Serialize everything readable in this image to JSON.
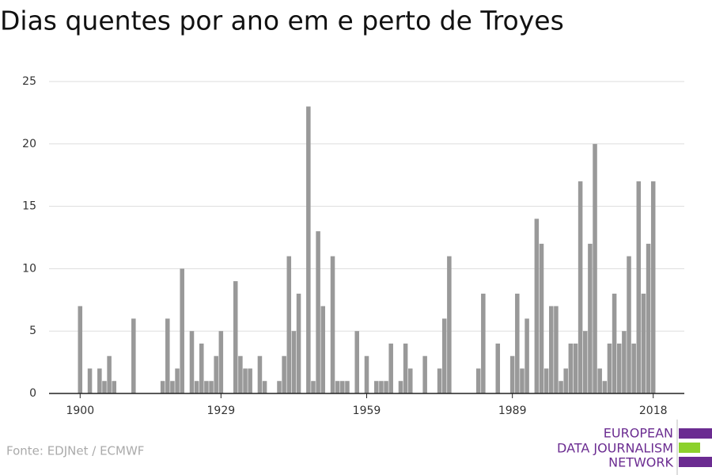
{
  "chart_data": {
    "type": "bar",
    "title": "Dias quentes por ano em e perto de Troyes",
    "source": "Fonte: EDJNet / ECMWF",
    "logo": [
      "EUROPEAN",
      "DATA JOURNALISM",
      "NETWORK"
    ],
    "color": "#999999",
    "x": [
      1900,
      1901,
      1902,
      1903,
      1904,
      1905,
      1906,
      1907,
      1908,
      1909,
      1910,
      1911,
      1912,
      1913,
      1914,
      1915,
      1916,
      1917,
      1918,
      1919,
      1920,
      1921,
      1922,
      1923,
      1924,
      1925,
      1926,
      1927,
      1928,
      1929,
      1930,
      1931,
      1932,
      1933,
      1934,
      1935,
      1936,
      1937,
      1938,
      1939,
      1940,
      1941,
      1942,
      1943,
      1944,
      1945,
      1946,
      1947,
      1948,
      1949,
      1950,
      1951,
      1952,
      1953,
      1954,
      1955,
      1956,
      1957,
      1958,
      1959,
      1960,
      1961,
      1962,
      1963,
      1964,
      1965,
      1966,
      1967,
      1968,
      1969,
      1970,
      1971,
      1972,
      1973,
      1974,
      1975,
      1976,
      1977,
      1978,
      1979,
      1980,
      1981,
      1982,
      1983,
      1984,
      1985,
      1986,
      1987,
      1988,
      1989,
      1990,
      1991,
      1992,
      1993,
      1994,
      1995,
      1996,
      1997,
      1998,
      1999,
      2000,
      2001,
      2002,
      2003,
      2004,
      2005,
      2006,
      2007,
      2008,
      2009,
      2010,
      2011,
      2012,
      2013,
      2014,
      2015,
      2016,
      2017,
      2018
    ],
    "values": [
      7,
      0,
      2,
      0,
      2,
      1,
      3,
      1,
      0,
      0,
      0,
      6,
      0,
      0,
      0,
      0,
      0,
      1,
      6,
      1,
      2,
      10,
      0,
      5,
      1,
      4,
      1,
      1,
      3,
      5,
      0,
      0,
      9,
      3,
      2,
      2,
      0,
      3,
      1,
      0,
      0,
      1,
      3,
      11,
      5,
      8,
      0,
      23,
      1,
      13,
      7,
      0,
      11,
      1,
      1,
      1,
      0,
      5,
      0,
      3,
      0,
      1,
      1,
      1,
      4,
      0,
      1,
      4,
      2,
      0,
      0,
      3,
      0,
      0,
      2,
      6,
      11,
      0,
      0,
      0,
      0,
      0,
      2,
      8,
      0,
      0,
      4,
      0,
      0,
      3,
      8,
      2,
      6,
      0,
      14,
      12,
      2,
      7,
      7,
      1,
      2,
      4,
      4,
      17,
      5,
      12,
      20,
      2,
      1,
      4,
      8,
      4,
      5,
      11,
      4,
      17,
      8,
      12,
      17
    ],
    "xlim": [
      1893.6,
      2024.4
    ],
    "xticks": [
      1900,
      1929,
      1959,
      1989,
      2018
    ],
    "ylim": [
      0,
      25
    ],
    "yticks": [
      0,
      5,
      10,
      15,
      20,
      25
    ],
    "grid": true
  }
}
